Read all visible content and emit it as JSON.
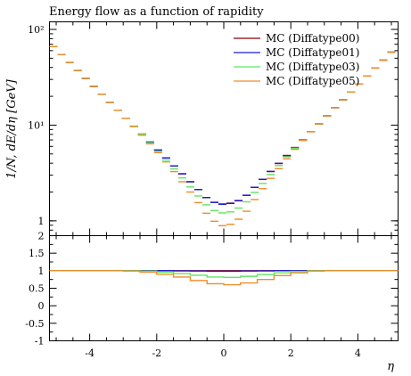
{
  "chart_data": [
    {
      "type": "line",
      "panel": "main",
      "title": "Energy flow as a function of rapidity",
      "ylabel": "1/N, dE/dη [GeV]",
      "xlabel": "",
      "x_range": [
        -5.2,
        5.2
      ],
      "y_scale": "log",
      "ylim": [
        0.7,
        120
      ],
      "y_ticks": [
        {
          "v": 1,
          "label": "1"
        },
        {
          "v": 10,
          "label": "10¹"
        },
        {
          "v": 100,
          "label": "10²"
        }
      ],
      "legend_position": "top-right",
      "x_bin_edges": [
        -5.2,
        -4.96,
        -4.72,
        -4.48,
        -4.24,
        -4.0,
        -3.76,
        -3.52,
        -3.28,
        -3.04,
        -2.8,
        -2.56,
        -2.32,
        -2.08,
        -1.84,
        -1.6,
        -1.36,
        -1.12,
        -0.88,
        -0.64,
        -0.4,
        -0.16,
        0.08,
        0.32,
        0.56,
        0.8,
        1.04,
        1.28,
        1.52,
        1.76,
        2.0,
        2.24,
        2.48,
        2.72,
        2.96,
        3.2,
        3.44,
        3.68,
        3.92,
        4.16,
        4.4,
        4.64,
        4.88,
        5.12
      ],
      "series": [
        {
          "name": "MC (Diffatype00)",
          "color": "#8b0000",
          "values": [
            66.2,
            54.6,
            45.1,
            37.2,
            30.8,
            25.4,
            21.0,
            17.3,
            14.3,
            11.8,
            9.74,
            8.05,
            6.65,
            5.49,
            4.54,
            3.75,
            3.1,
            2.56,
            2.12,
            1.75,
            1.56,
            1.5,
            1.53,
            1.63,
            1.85,
            2.24,
            2.71,
            3.28,
            3.98,
            4.81,
            5.83,
            7.06,
            8.55,
            10.3,
            12.5,
            15.2,
            18.4,
            22.2,
            26.9,
            32.6,
            39.5,
            47.8,
            57.9
          ]
        },
        {
          "name": "MC (Diffatype01)",
          "color": "#1a1ad6",
          "values": [
            66.2,
            54.6,
            45.1,
            37.2,
            30.8,
            25.4,
            21.0,
            17.3,
            14.3,
            11.8,
            9.74,
            8.05,
            6.65,
            5.49,
            4.54,
            3.75,
            3.1,
            2.56,
            2.12,
            1.75,
            1.56,
            1.49,
            1.52,
            1.62,
            1.85,
            2.24,
            2.71,
            3.28,
            3.98,
            4.81,
            5.83,
            7.06,
            8.55,
            10.3,
            12.5,
            15.2,
            18.4,
            22.2,
            26.9,
            32.6,
            39.5,
            47.8,
            57.9
          ]
        },
        {
          "name": "MC (Diffatype03)",
          "color": "#5ee65e",
          "values": [
            66.2,
            54.6,
            45.1,
            37.2,
            30.8,
            25.4,
            21.0,
            17.3,
            14.3,
            11.8,
            9.74,
            8.05,
            6.55,
            5.34,
            4.32,
            3.49,
            2.81,
            2.26,
            1.82,
            1.47,
            1.28,
            1.21,
            1.24,
            1.36,
            1.58,
            1.98,
            2.46,
            3.05,
            3.78,
            4.66,
            5.74,
            7.02,
            8.55,
            10.3,
            12.5,
            15.2,
            18.4,
            22.2,
            26.9,
            32.6,
            39.5,
            47.8,
            57.9
          ]
        },
        {
          "name": "MC (Diffatype05)",
          "color": "#f08c2a",
          "values": [
            66.2,
            54.6,
            45.1,
            37.2,
            30.8,
            25.4,
            21.0,
            17.3,
            14.3,
            11.8,
            9.64,
            7.85,
            6.38,
            5.16,
            4.13,
            3.27,
            2.56,
            2.0,
            1.55,
            1.2,
            0.99,
            0.89,
            0.92,
            1.04,
            1.26,
            1.67,
            2.17,
            2.78,
            3.51,
            4.45,
            5.58,
            6.92,
            8.51,
            10.3,
            12.5,
            15.2,
            18.4,
            22.2,
            26.9,
            32.6,
            39.5,
            47.8,
            57.9
          ]
        }
      ]
    },
    {
      "type": "line",
      "panel": "ratio",
      "xlabel": "η",
      "x_range": [
        -5.2,
        5.2
      ],
      "ylim": [
        -1,
        2
      ],
      "x_ticks": [
        {
          "v": -4,
          "label": "-4"
        },
        {
          "v": -2,
          "label": "-2"
        },
        {
          "v": 0,
          "label": "0"
        },
        {
          "v": 2,
          "label": "2"
        },
        {
          "v": 4,
          "label": "4"
        }
      ],
      "y_ticks": [
        {
          "v": -1,
          "label": "-1"
        },
        {
          "v": -0.5,
          "label": "-0.5"
        },
        {
          "v": 0,
          "label": "0"
        },
        {
          "v": 0.5,
          "label": "0.5"
        },
        {
          "v": 1,
          "label": "1"
        },
        {
          "v": 1.5,
          "label": "1.5"
        },
        {
          "v": 2,
          "label": "2"
        }
      ],
      "x_edges": [
        -5.2,
        -3.0,
        -2.5,
        -2.0,
        -1.5,
        -1.0,
        -0.5,
        0.0,
        0.5,
        1.0,
        1.5,
        2.0,
        2.5,
        3.0,
        5.2
      ],
      "series": [
        {
          "name": "MC (Diffatype00)",
          "color": "#8b0000",
          "values": [
            1.0,
            1.0,
            1.0,
            1.0,
            1.0,
            1.0,
            1.0,
            1.0,
            1.0,
            1.0,
            1.0,
            1.0,
            1.0,
            1.0
          ]
        },
        {
          "name": "MC (Diffatype01)",
          "color": "#1a1ad6",
          "values": [
            1.0,
            1.0,
            1.0,
            1.0,
            0.995,
            0.99,
            0.985,
            0.985,
            0.99,
            0.995,
            1.0,
            1.0,
            1.0,
            1.0
          ]
        },
        {
          "name": "MC (Diffatype03)",
          "color": "#5ee65e",
          "values": [
            1.0,
            1.0,
            0.99,
            0.96,
            0.92,
            0.87,
            0.82,
            0.81,
            0.84,
            0.89,
            0.94,
            0.98,
            1.0,
            1.0
          ]
        },
        {
          "name": "MC (Diffatype05)",
          "color": "#f08c2a",
          "values": [
            1.0,
            0.99,
            0.96,
            0.9,
            0.82,
            0.72,
            0.63,
            0.6,
            0.65,
            0.75,
            0.86,
            0.94,
            0.99,
            1.0
          ]
        }
      ]
    }
  ]
}
